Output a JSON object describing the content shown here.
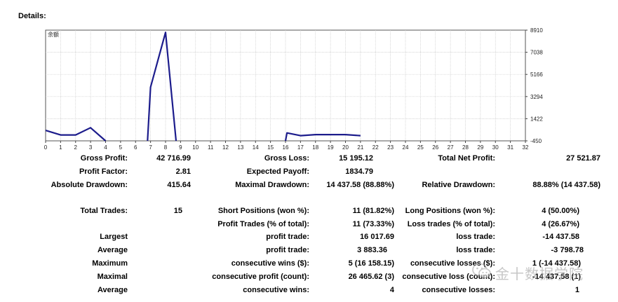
{
  "header": {
    "title": "Details:"
  },
  "chart_data": {
    "type": "line",
    "title": "余额",
    "yticks": [
      8910,
      7038,
      5166,
      3294,
      1422,
      -450
    ],
    "ylim": [
      -450,
      8910
    ],
    "xticks": [
      0,
      1,
      2,
      3,
      4,
      5,
      6,
      7,
      8,
      9,
      10,
      11,
      12,
      13,
      14,
      15,
      16,
      17,
      18,
      19,
      20,
      21,
      22,
      23,
      24,
      25,
      26,
      27,
      28,
      29,
      30,
      31,
      32
    ],
    "xlim": [
      0,
      32
    ],
    "grid": true,
    "series": [
      {
        "color": "#1c1c8c",
        "segments": [
          [
            [
              0,
              430
            ],
            [
              1,
              50
            ],
            [
              2,
              50
            ],
            [
              3,
              660
            ],
            [
              4.0,
              -450
            ]
          ],
          [
            [
              6.8,
              -450
            ],
            [
              7,
              4080
            ],
            [
              8,
              8720
            ],
            [
              8.7,
              -450
            ]
          ],
          [
            [
              16,
              -450
            ],
            [
              16.1,
              220
            ],
            [
              17,
              -10
            ],
            [
              18,
              80
            ],
            [
              19,
              80
            ],
            [
              20,
              80
            ],
            [
              21,
              -10
            ]
          ]
        ]
      }
    ]
  },
  "stats": [
    {
      "label": "Gross Profit:",
      "value": "42 716.99"
    },
    {
      "label": "Gross Loss:",
      "value": "15 195.12"
    },
    {
      "label": "Total Net Profit:",
      "value": "27 521.87"
    },
    {
      "label": "Profit Factor:",
      "value": "2.81"
    },
    {
      "label": "Expected Payoff:",
      "value": "1834.79"
    },
    {
      "label": "Absolute Drawdown:",
      "value": "415.64"
    },
    {
      "label": "Maximal Drawdown:",
      "value": "14 437.58 (88.88%)"
    },
    {
      "label": "Relative Drawdown:",
      "value": "88.88% (14 437.58)"
    },
    {
      "label": "Total Trades:",
      "value": "15"
    },
    {
      "label": "Short Positions (won %):",
      "value": "11 (81.82%)"
    },
    {
      "label": "Long Positions (won %):",
      "value": "4 (50.00%)"
    },
    {
      "label": "Profit Trades (% of total):",
      "value": "11 (73.33%)"
    },
    {
      "label": "Loss trades (% of total):",
      "value": "4 (26.67%)"
    },
    {
      "label": "Largest",
      "value": ""
    },
    {
      "label": "profit trade:",
      "value": "16 017.69"
    },
    {
      "label": "loss trade:",
      "value": "-14 437.58"
    },
    {
      "label": "Average",
      "value": ""
    },
    {
      "label": "profit trade:",
      "value": "3 883.36"
    },
    {
      "label": "loss trade:",
      "value": "-3 798.78"
    },
    {
      "label": "Maximum",
      "value": ""
    },
    {
      "label": "consecutive wins ($):",
      "value": "5 (16 158.15)"
    },
    {
      "label": "consecutive losses ($):",
      "value": "1 (-14 437.58)"
    },
    {
      "label": "Maximal",
      "value": ""
    },
    {
      "label": "consecutive profit (count):",
      "value": "26 465.62 (3)"
    },
    {
      "label": "consecutive loss (count):",
      "value": "-14 437.58 (1)"
    },
    {
      "label": "Average",
      "value": ""
    },
    {
      "label": "consecutive wins:",
      "value": "4"
    },
    {
      "label": "consecutive losses:",
      "value": "1"
    }
  ],
  "watermark": {
    "text": "金十数据学院",
    "icon": "wechat-icon"
  }
}
